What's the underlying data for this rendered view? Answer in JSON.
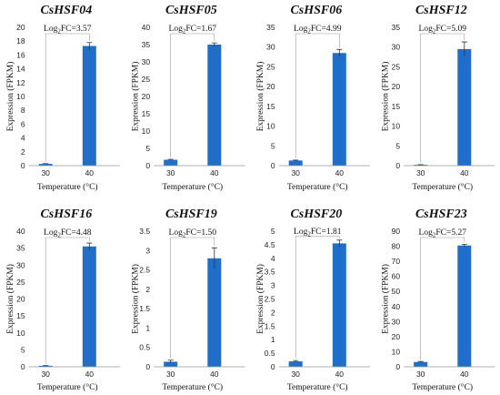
{
  "figure": {
    "colors": {
      "bar": "#1f6fca",
      "axis": "#999999",
      "bracket": "#9a9a9a",
      "error_bar": "#333333",
      "text": "#111111"
    }
  },
  "chart_data": [
    {
      "type": "bar",
      "title": "CsHSF04",
      "annotation": {
        "prefix": "Log",
        "sub": "2",
        "suffix": "FC=3.57"
      },
      "xlabel": "Temperature (°C)",
      "ylabel": "Expression (FPKM)",
      "categories": [
        "30",
        "40"
      ],
      "values": [
        0.25,
        17.3
      ],
      "errors": [
        0.05,
        0.5
      ],
      "ylim": [
        0,
        20
      ],
      "yticks": [
        "0",
        "2",
        "4",
        "6",
        "8",
        "10",
        "12",
        "14",
        "16",
        "18",
        "20"
      ]
    },
    {
      "type": "bar",
      "title": "CsHSF05",
      "annotation": {
        "prefix": "Log",
        "sub": "2",
        "suffix": "FC=1.67"
      },
      "xlabel": "Temperature (°C)",
      "ylabel": "Expression (FPKM)",
      "categories": [
        "30",
        "40"
      ],
      "values": [
        1.7,
        35.0
      ],
      "errors": [
        0.15,
        0.5
      ],
      "ylim": [
        0,
        40
      ],
      "yticks": [
        "0",
        "5",
        "10",
        "15",
        "20",
        "25",
        "30",
        "35",
        "40"
      ]
    },
    {
      "type": "bar",
      "title": "CsHSF06",
      "annotation": {
        "prefix": "Log",
        "sub": "2",
        "suffix": "FC=4.99"
      },
      "xlabel": "Temperature (°C)",
      "ylabel": "Expression (FPKM)",
      "categories": [
        "30",
        "40"
      ],
      "values": [
        1.3,
        28.5
      ],
      "errors": [
        0.1,
        0.9
      ],
      "ylim": [
        0,
        35
      ],
      "yticks": [
        "0",
        "5",
        "10",
        "15",
        "20",
        "25",
        "30",
        "35"
      ]
    },
    {
      "type": "bar",
      "title": "CsHSF12",
      "annotation": {
        "prefix": "Log",
        "sub": "2",
        "suffix": "FC=5.09"
      },
      "xlabel": "Temperature (°C)",
      "ylabel": "Expression (FPKM)",
      "categories": [
        "30",
        "40"
      ],
      "values": [
        0.2,
        29.5
      ],
      "errors": [
        0.05,
        1.8
      ],
      "ylim": [
        0,
        35
      ],
      "yticks": [
        "0",
        "5",
        "10",
        "15",
        "20",
        "25",
        "30",
        "35"
      ]
    },
    {
      "type": "bar",
      "title": "CsHSF16",
      "annotation": {
        "prefix": "Log",
        "sub": "2",
        "suffix": "FC=4.48"
      },
      "xlabel": "Temperature (°C)",
      "ylabel": "Expression (FPKM)",
      "categories": [
        "30",
        "40"
      ],
      "values": [
        0.3,
        35.5
      ],
      "errors": [
        0.05,
        1.0
      ],
      "ylim": [
        0,
        40
      ],
      "yticks": [
        "0",
        "5",
        "10",
        "15",
        "20",
        "25",
        "30",
        "35",
        "40"
      ]
    },
    {
      "type": "bar",
      "title": "CsHSF19",
      "annotation": {
        "prefix": "Log",
        "sub": "2",
        "suffix": "FC=1.50"
      },
      "xlabel": "Temperature (°C)",
      "ylabel": "Expression (FPKM)",
      "categories": [
        "30",
        "40"
      ],
      "values": [
        0.13,
        2.8
      ],
      "errors": [
        0.04,
        0.27
      ],
      "ylim": [
        0,
        3.5
      ],
      "yticks": [
        "0",
        "0.5",
        "1",
        "1.5",
        "2",
        "2.5",
        "3",
        "3.5"
      ]
    },
    {
      "type": "bar",
      "title": "CsHSF20",
      "annotation": {
        "prefix": "Log",
        "sub": "2",
        "suffix": "FC=1.81"
      },
      "xlabel": "Temperature (°C)",
      "ylabel": "Expression (FPKM)",
      "categories": [
        "30",
        "40"
      ],
      "values": [
        0.2,
        4.55
      ],
      "errors": [
        0.03,
        0.12
      ],
      "ylim": [
        0,
        5
      ],
      "yticks": [
        "0",
        "0.5",
        "1",
        "1.5",
        "2",
        "2.5",
        "3",
        "3.5",
        "4",
        "4.5",
        "5"
      ]
    },
    {
      "type": "bar",
      "title": "CsHSF23",
      "annotation": {
        "prefix": "Log",
        "sub": "2",
        "suffix": "FC=5.27"
      },
      "xlabel": "Temperature (°C)",
      "ylabel": "Expression (FPKM)",
      "categories": [
        "30",
        "40"
      ],
      "values": [
        3.2,
        80.5
      ],
      "errors": [
        0.3,
        0.8
      ],
      "ylim": [
        0,
        90
      ],
      "yticks": [
        "0",
        "10",
        "20",
        "30",
        "40",
        "50",
        "60",
        "70",
        "80",
        "90"
      ]
    }
  ]
}
